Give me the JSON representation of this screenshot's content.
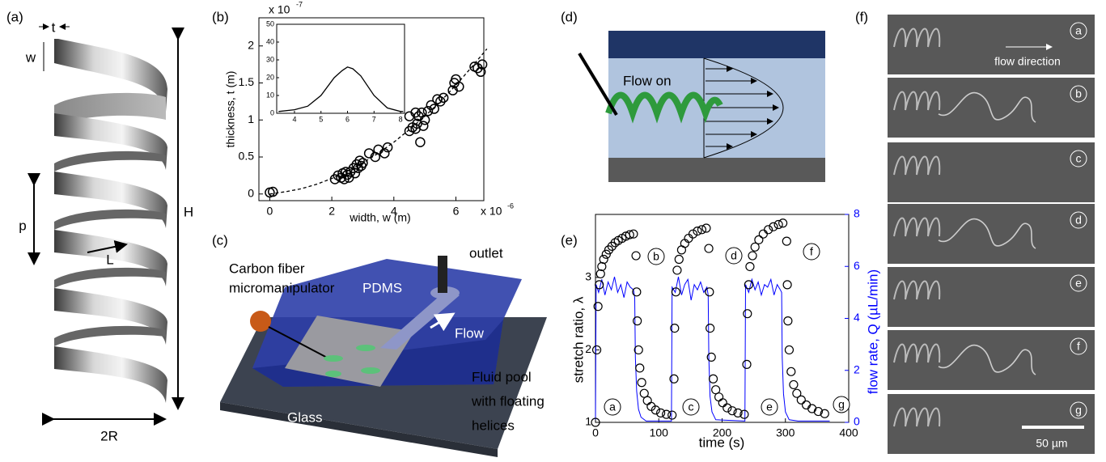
{
  "panel_labels": [
    "(a)",
    "(b)",
    "(c)",
    "(d)",
    "(e)",
    "(f)"
  ],
  "helix": {
    "labels": [
      "t",
      "w",
      "p",
      "L",
      "H",
      "2R"
    ]
  },
  "chart_data": [
    {
      "type": "scatter",
      "xlabel": "width,  w (m)",
      "ylabel": "thickness,  t (m)",
      "x_multiplier": "x 10",
      "x_exponent": "-6",
      "y_multiplier": "x 10",
      "y_exponent": "-7",
      "xlim": [
        -0.35,
        6.9
      ],
      "ylim": [
        -0.09,
        2.38
      ],
      "xticks": [
        0,
        2,
        4,
        6
      ],
      "yticks": [
        0,
        0.5,
        1,
        1.5,
        2
      ],
      "color": "#000000",
      "x": [
        0,
        0.1,
        2.1,
        2.2,
        2.3,
        2.35,
        2.4,
        2.45,
        2.5,
        2.55,
        2.6,
        2.7,
        2.75,
        2.8,
        2.85,
        2.9,
        2.95,
        3.0,
        3.2,
        3.4,
        3.5,
        3.7,
        3.8,
        4.5,
        4.6,
        4.7,
        4.75,
        4.8,
        4.85,
        4.9,
        4.95,
        5.0,
        5.1,
        5.2,
        5.3,
        5.4,
        5.5,
        5.6,
        5.9,
        5.95,
        6.0,
        6.1,
        6.6,
        6.7,
        6.8,
        6.85,
        4.7,
        4.5
      ],
      "values": [
        0.02,
        0.03,
        0.2,
        0.25,
        0.22,
        0.28,
        0.2,
        0.3,
        0.26,
        0.22,
        0.3,
        0.35,
        0.28,
        0.4,
        0.35,
        0.45,
        0.38,
        0.42,
        0.55,
        0.5,
        0.6,
        0.55,
        0.63,
        0.85,
        0.9,
        0.88,
        0.95,
        1.05,
        0.7,
        1.1,
        0.92,
        1.0,
        1.12,
        1.2,
        1.15,
        1.28,
        1.25,
        1.3,
        1.4,
        1.5,
        1.55,
        1.45,
        1.72,
        1.7,
        1.65,
        1.75,
        1.1,
        1.05
      ],
      "fit_x": [
        0,
        0.5,
        1,
        1.5,
        2,
        2.5,
        3,
        3.5,
        4,
        4.5,
        5,
        5.5,
        6,
        6.5,
        7
      ],
      "fit_values": [
        0,
        0.03,
        0.07,
        0.13,
        0.21,
        0.31,
        0.42,
        0.55,
        0.7,
        0.87,
        1.05,
        1.25,
        1.47,
        1.71,
        1.96
      ]
    },
    {
      "type": "line",
      "xlim": [
        3.33,
        8.15
      ],
      "ylim": [
        0,
        50
      ],
      "xticks": [
        4,
        5,
        6,
        7,
        8
      ],
      "yticks": [
        0,
        10,
        20,
        30,
        40,
        50
      ],
      "color": "#000000",
      "x": [
        3.4,
        4,
        4.5,
        5,
        5.5,
        5.8,
        6,
        6.2,
        6.5,
        7,
        7.5,
        8,
        8.1
      ],
      "values": [
        1,
        2,
        4,
        10,
        20,
        24,
        26,
        25,
        21,
        10,
        3,
        1,
        1
      ]
    },
    {
      "type": "dual",
      "xlabel": "time (s)",
      "ylabel": "stretch ratio,  λ",
      "y2label": "flow rate,  Q (µL/min)",
      "xlim": [
        0,
        400
      ],
      "ylim": [
        1,
        3.87
      ],
      "y2lim": [
        0,
        8
      ],
      "xticks": [
        0,
        100,
        200,
        300,
        400
      ],
      "yticks": [
        1,
        2,
        3
      ],
      "y2ticks": [
        0,
        2,
        4,
        6,
        8
      ],
      "stretch_color": "#000000",
      "flow_color": "#0000ff",
      "annotations": [
        "a",
        "b",
        "c",
        "d",
        "e",
        "f",
        "g"
      ],
      "stretch_x": [
        0,
        2,
        4,
        6,
        8,
        10,
        13,
        17,
        21,
        26,
        31,
        36,
        42,
        48,
        54,
        60,
        64,
        65,
        66,
        68,
        70,
        73,
        77,
        82,
        88,
        95,
        103,
        112,
        121,
        124,
        125,
        127,
        129,
        132,
        136,
        141,
        147,
        154,
        161,
        168,
        175,
        179,
        180,
        181,
        183,
        186,
        190,
        195,
        201,
        208,
        216,
        225,
        235,
        239,
        240,
        242,
        244,
        248,
        252,
        258,
        265,
        273,
        281,
        289,
        296,
        302,
        303,
        304,
        306,
        309,
        313,
        318,
        325,
        333,
        342,
        352,
        362
      ],
      "stretch_values": [
        1.0,
        2.0,
        2.6,
        2.9,
        3.05,
        3.15,
        3.25,
        3.32,
        3.38,
        3.43,
        3.48,
        3.51,
        3.54,
        3.57,
        3.59,
        3.6,
        3.3,
        2.8,
        2.4,
        2.0,
        1.75,
        1.55,
        1.4,
        1.3,
        1.22,
        1.17,
        1.13,
        1.11,
        1.1,
        1.6,
        2.3,
        2.8,
        3.1,
        3.25,
        3.38,
        3.47,
        3.54,
        3.6,
        3.64,
        3.66,
        3.68,
        3.4,
        2.8,
        2.3,
        1.9,
        1.6,
        1.45,
        1.35,
        1.27,
        1.2,
        1.16,
        1.13,
        1.11,
        1.8,
        2.5,
        2.9,
        3.15,
        3.3,
        3.42,
        3.52,
        3.6,
        3.66,
        3.7,
        3.73,
        3.75,
        3.5,
        2.9,
        2.4,
        2.0,
        1.7,
        1.52,
        1.4,
        1.31,
        1.24,
        1.19,
        1.15,
        1.12
      ],
      "flow_x": [
        0,
        1,
        5,
        10,
        15,
        20,
        25,
        30,
        35,
        40,
        45,
        50,
        55,
        60,
        62,
        63,
        65,
        68,
        72,
        80,
        120,
        121,
        126,
        131,
        136,
        141,
        146,
        151,
        156,
        161,
        166,
        171,
        176,
        178,
        179,
        181,
        184,
        190,
        236,
        237,
        242,
        247,
        252,
        257,
        262,
        267,
        272,
        277,
        282,
        287,
        292,
        294,
        295,
        297,
        300,
        306,
        320,
        370
      ],
      "flow_values": [
        0.1,
        5.3,
        5.0,
        5.5,
        4.9,
        5.4,
        5.1,
        5.6,
        5.0,
        5.3,
        4.8,
        5.4,
        5.2,
        5.1,
        4.8,
        2.5,
        1.2,
        0.5,
        0.2,
        0.05,
        0.05,
        5.2,
        5.0,
        5.6,
        4.9,
        5.3,
        5.5,
        4.7,
        5.3,
        5.1,
        5.4,
        5.0,
        5.2,
        4.9,
        2.5,
        1.0,
        0.4,
        0.1,
        0.05,
        5.3,
        5.0,
        5.5,
        5.1,
        5.4,
        4.9,
        5.3,
        5.2,
        5.5,
        4.9,
        5.3,
        5.1,
        5.0,
        2.5,
        1.1,
        0.4,
        0.1,
        0.05,
        0.05
      ]
    }
  ],
  "setup": {
    "outlet": "outlet",
    "manipulator": [
      "Carbon fiber",
      "micromanipulator"
    ],
    "pdms": "PDMS",
    "flow": "Flow",
    "glass": "Glass",
    "pool": [
      "Fluid pool",
      "with floating",
      "helices"
    ]
  },
  "flow_diagram": {
    "label": "Flow on"
  },
  "micrographs": {
    "frames": [
      "a",
      "b",
      "c",
      "d",
      "e",
      "f",
      "g"
    ],
    "annotation": "flow direction",
    "scale_bar": "50 µm"
  }
}
